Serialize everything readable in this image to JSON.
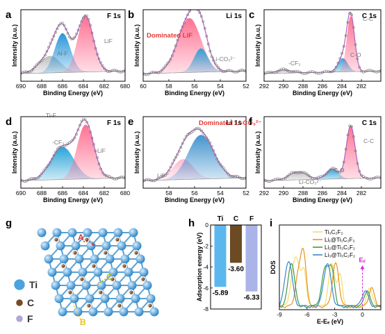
{
  "panels": [
    {
      "id": "a",
      "letter": "a",
      "title": "F 1s",
      "xlabel": "Binding Energy (eV)",
      "ylabel": "Intensity (a.u.)",
      "xlim": [
        690,
        680
      ],
      "xticks": [
        690,
        688,
        686,
        684,
        682,
        680
      ],
      "peaks": [
        {
          "center": 687.2,
          "sigma": 1.0,
          "amp": 0.25,
          "fill": "#bbbbbb",
          "label": "Ti-F",
          "label_color": "#777777"
        },
        {
          "center": 686.0,
          "sigma": 0.75,
          "amp": 0.58,
          "fill": "#1e90d8",
          "label": "Al-F",
          "label_color": "#777777"
        },
        {
          "center": 683.8,
          "sigma": 0.75,
          "amp": 0.82,
          "fill": "#ff6a8e",
          "label": "LiF",
          "label_color": "#777777"
        }
      ]
    },
    {
      "id": "b",
      "letter": "b",
      "title": "Li 1s",
      "xlabel": "Binding Energy (eV)",
      "ylabel": "Intensity (a.u.)",
      "xlim": [
        60,
        52
      ],
      "xticks": [
        60,
        58,
        56,
        54,
        52
      ],
      "peaks": [
        {
          "center": 56.4,
          "sigma": 0.9,
          "amp": 0.8,
          "fill": "#ff6a8e",
          "label": "Dominated LiF",
          "label_color": "#e53935"
        },
        {
          "center": 55.5,
          "sigma": 0.55,
          "amp": 0.35,
          "fill": "#2a9fd6",
          "label": "Li-CO₃²⁻",
          "label_color": "#777777"
        }
      ]
    },
    {
      "id": "c",
      "letter": "c",
      "title": "C 1s",
      "xlabel": "Binding Energy (eV)",
      "ylabel": "Intensity (a.u.)",
      "xlim": [
        292,
        280
      ],
      "xticks": [
        292,
        290,
        288,
        286,
        284,
        282
      ],
      "peaks": [
        {
          "center": 290.0,
          "sigma": 0.8,
          "amp": 0.05,
          "fill": "#bbbbbb",
          "label": "-CF₃",
          "label_color": "#777777"
        },
        {
          "center": 283.9,
          "sigma": 0.5,
          "amp": 0.2,
          "fill": "#2a9fd6",
          "label": "C-O",
          "label_color": "#777777"
        },
        {
          "center": 283.1,
          "sigma": 0.4,
          "amp": 0.82,
          "fill": "#ff6a8e",
          "label": "C-C",
          "label_color": "#777777"
        }
      ]
    },
    {
      "id": "d",
      "letter": "d",
      "title": "F 1s",
      "xlabel": "Binding Energy (eV)",
      "ylabel": "Intensity (a.u.)",
      "xlim": [
        690,
        680
      ],
      "xticks": [
        690,
        688,
        686,
        684,
        682,
        680
      ],
      "peaks": [
        {
          "center": 686.0,
          "sigma": 1.1,
          "amp": 0.48,
          "fill": "#1e9fd6",
          "label": "-CF₃",
          "label_color": "#777777"
        },
        {
          "center": 683.8,
          "sigma": 0.8,
          "amp": 0.8,
          "fill": "#ff6a8e",
          "label": "LiF",
          "label_color": "#777777"
        }
      ]
    },
    {
      "id": "e",
      "letter": "e",
      "title": "Li 1s",
      "xlabel": "Binding Energy (eV)",
      "ylabel": "Intensity (a.u.)",
      "xlim": [
        60,
        52
      ],
      "xticks": [
        58,
        56,
        54,
        52
      ],
      "peaks": [
        {
          "center": 56.9,
          "sigma": 0.8,
          "amp": 0.3,
          "fill": "#ffb6cf",
          "label": "LiF",
          "label_color": "#777777"
        },
        {
          "center": 55.5,
          "sigma": 1.0,
          "amp": 0.65,
          "fill": "#3a8fcc",
          "label": "Dominated Li-CO₃²⁻",
          "label_color": "#e53935"
        }
      ]
    },
    {
      "id": "f",
      "letter": "f",
      "title": "C 1s",
      "xlabel": "Binding Energy (eV)",
      "ylabel": "Intensity (a.u.)",
      "xlim": [
        292,
        280
      ],
      "xticks": [
        292,
        290,
        288,
        286,
        284,
        282
      ],
      "peaks": [
        {
          "center": 288.5,
          "sigma": 0.9,
          "amp": 0.12,
          "fill": "#bbbbbb",
          "label": "Li-CO₃²⁻",
          "label_color": "#777777"
        },
        {
          "center": 285.0,
          "sigma": 0.6,
          "amp": 0.15,
          "fill": "#2a9fd6",
          "label": "C-O",
          "label_color": "#777777"
        },
        {
          "center": 283.1,
          "sigma": 0.45,
          "amp": 0.78,
          "fill": "#ff6a8e",
          "label": "C-C",
          "label_color": "#777777"
        }
      ]
    }
  ],
  "structure": {
    "letter": "g",
    "legend": [
      {
        "label": "Ti",
        "color": "#4aa3dc"
      },
      {
        "label": "C",
        "color": "#7a4a26"
      },
      {
        "label": "F",
        "color": "#b0a6d8"
      }
    ],
    "sites": [
      {
        "label": "A",
        "color": "#e03030"
      },
      {
        "label": "B",
        "color": "#e8c020"
      },
      {
        "label": "C",
        "color": "#b8b820"
      }
    ]
  },
  "chart_data": [
    {
      "type": "bar",
      "letter": "h",
      "title": "",
      "categories": [
        "Ti",
        "C",
        "F"
      ],
      "values": [
        -5.89,
        -3.6,
        -6.33
      ],
      "value_labels": [
        "-5.89",
        "-3.60",
        "-6.33"
      ],
      "colors": [
        "#5bb8ee",
        "#6b4a24",
        "#aab4e8"
      ],
      "ylabel": "Adsorption energy (eV)",
      "ylim": [
        0,
        -8
      ],
      "yticks": [
        "0",
        "-2",
        "-4",
        "-6",
        "-8"
      ]
    },
    {
      "type": "line",
      "letter": "i",
      "title": "",
      "xlabel": "E-Eₑ (eV)",
      "ylabel": "DOS",
      "xlim": [
        -9,
        2
      ],
      "xticks": [
        "-9",
        "-6",
        "-3",
        "0"
      ],
      "fermi_label": "Eₑ",
      "fermi_x": 0,
      "series": [
        {
          "name": "Ti₃C₂F₂",
          "color": "#f5dd6a",
          "peaks": [
            [
              -7.2,
              0.45,
              0.82
            ],
            [
              -6.3,
              0.25,
              0.5
            ],
            [
              -3.3,
              0.35,
              0.7
            ],
            [
              -2.4,
              0.25,
              0.5
            ],
            [
              0.8,
              0.3,
              0.3
            ]
          ]
        },
        {
          "name": "Li₁@Ti₃C₂F₂",
          "color": "#e8941e",
          "peaks": [
            [
              -6.4,
              0.3,
              0.9
            ],
            [
              -7.0,
              0.3,
              0.45
            ],
            [
              -2.9,
              0.35,
              0.7
            ],
            [
              1.0,
              0.3,
              0.3
            ]
          ]
        },
        {
          "name": "Li₂@Ti₃C₂F₂",
          "color": "#3b9a46",
          "peaks": [
            [
              -7.7,
              0.35,
              0.72
            ],
            [
              -4.0,
              0.4,
              0.62
            ],
            [
              -3.3,
              0.3,
              0.5
            ],
            [
              0.5,
              0.3,
              0.26
            ]
          ]
        },
        {
          "name": "Li₃@Ti₃C₂F₂",
          "color": "#3a86c8",
          "peaks": [
            [
              -8.0,
              0.4,
              0.75
            ],
            [
              -3.8,
              0.4,
              0.7
            ],
            [
              0.3,
              0.35,
              0.25
            ]
          ]
        }
      ]
    }
  ]
}
